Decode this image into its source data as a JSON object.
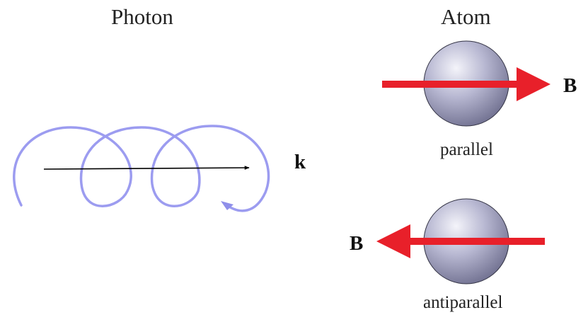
{
  "photon": {
    "title": "Photon",
    "wave_vector_label": "k"
  },
  "atom": {
    "title": "Atom",
    "field_label": "B",
    "states": [
      {
        "caption": "parallel",
        "field_direction": "right"
      },
      {
        "caption": "antiparallel",
        "field_direction": "left"
      }
    ]
  },
  "colors": {
    "helix": "#9c9cf0",
    "field_arrow": "#e8202a",
    "sphere": "#b8b8d2",
    "wave_vector": "#000000"
  }
}
